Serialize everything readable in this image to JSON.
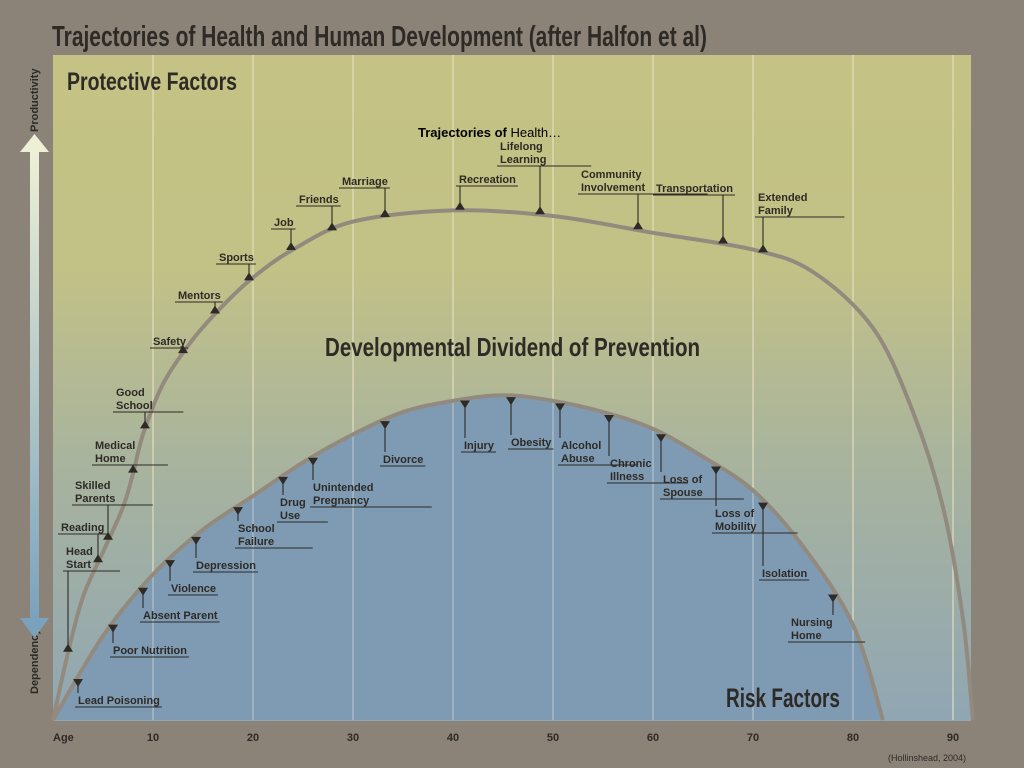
{
  "title": "Trajectories of Health and Human Development (after Halfon et al)",
  "slide_caption": {
    "bold": "Trajectories of",
    "normal": " Health…"
  },
  "labels": {
    "protective": "Protective Factors",
    "dividend": "Developmental Dividend of Prevention",
    "risk": "Risk Factors",
    "productivity": "Productivity",
    "dependency": "Dependency",
    "age": "Age",
    "citation": "(Hollinshead, 2004)"
  },
  "colors": {
    "background": "#8c8378",
    "panel_top": "#c4c284",
    "panel_bottom": "#94a7b0",
    "risk_area": "#7f9bb3",
    "curve": "#938a7e",
    "grid": "#e6e1c3",
    "text": "#2e2a26",
    "arrow_top": "#eef0d6",
    "arrow_bottom": "#7aa2bd"
  },
  "chart_data": {
    "type": "area",
    "x_axis": {
      "label": "Age",
      "ticks": [
        10,
        20,
        30,
        40,
        50,
        60,
        70,
        80,
        90
      ],
      "range": [
        0,
        92
      ]
    },
    "y_axis": {
      "top_label": "Productivity",
      "bottom_label": "Dependency"
    },
    "protective_curve": {
      "name": "Protective Factors",
      "points": [
        [
          0,
          0
        ],
        [
          1.5,
          12
        ],
        [
          3,
          22
        ],
        [
          5,
          30
        ],
        [
          7,
          38
        ],
        [
          8,
          44
        ],
        [
          9,
          51
        ],
        [
          11,
          60
        ],
        [
          14,
          68
        ],
        [
          17,
          74
        ],
        [
          20,
          79
        ],
        [
          24,
          84
        ],
        [
          30,
          89
        ],
        [
          40,
          91
        ],
        [
          50,
          90
        ],
        [
          60,
          87
        ],
        [
          70,
          84
        ],
        [
          76,
          80
        ],
        [
          82,
          70
        ],
        [
          86,
          55
        ],
        [
          89,
          38
        ],
        [
          91,
          18
        ],
        [
          92,
          0
        ]
      ]
    },
    "risk_curve": {
      "name": "Risk Factors",
      "points": [
        [
          0,
          0
        ],
        [
          5,
          15
        ],
        [
          10,
          26
        ],
        [
          15,
          34
        ],
        [
          20,
          40
        ],
        [
          25,
          46
        ],
        [
          30,
          51
        ],
        [
          35,
          55
        ],
        [
          40,
          57
        ],
        [
          45,
          58
        ],
        [
          50,
          57
        ],
        [
          55,
          55
        ],
        [
          60,
          52
        ],
        [
          65,
          47
        ],
        [
          70,
          41
        ],
        [
          75,
          31
        ],
        [
          80,
          17
        ],
        [
          83,
          0
        ]
      ]
    },
    "protective_factors": [
      {
        "label": [
          "Head",
          "Start"
        ],
        "x": 1.5
      },
      {
        "label": [
          "Reading"
        ],
        "x": 4.5
      },
      {
        "label": [
          "Skilled",
          "Parents"
        ],
        "x": 5.5
      },
      {
        "label": [
          "Medical",
          "Home"
        ],
        "x": 8
      },
      {
        "label": [
          "Good",
          "School"
        ],
        "x": 9.2
      },
      {
        "label": [
          "Safety"
        ],
        "x": 13
      },
      {
        "label": [
          "Mentors"
        ],
        "x": 16.2
      },
      {
        "label": [
          "Sports"
        ],
        "x": 19.6
      },
      {
        "label": [
          "Job"
        ],
        "x": 23.8
      },
      {
        "label": [
          "Friends"
        ],
        "x": 27.9
      },
      {
        "label": [
          "Marriage"
        ],
        "x": 33.2
      },
      {
        "label": [
          "Recreation"
        ],
        "x": 40.7
      },
      {
        "label": [
          "Lifelong",
          "Learning"
        ],
        "x": 48.7
      },
      {
        "label": [
          "Community",
          "Involvement"
        ],
        "x": 58.5
      },
      {
        "label": [
          "Transportation"
        ],
        "x": 67
      },
      {
        "label": [
          "Extended",
          "Family"
        ],
        "x": 71
      }
    ],
    "risk_factors": [
      {
        "label": [
          "Lead Poisoning"
        ],
        "x": 2.5
      },
      {
        "label": [
          "Poor Nutrition"
        ],
        "x": 6
      },
      {
        "label": [
          "Absent Parent"
        ],
        "x": 9
      },
      {
        "label": [
          "Violence"
        ],
        "x": 11.7
      },
      {
        "label": [
          "Depression"
        ],
        "x": 14.3
      },
      {
        "label": [
          "School",
          "Failure"
        ],
        "x": 18.5
      },
      {
        "label": [
          "Drug",
          "Use"
        ],
        "x": 23
      },
      {
        "label": [
          "Unintended",
          "Pregnancy"
        ],
        "x": 26
      },
      {
        "label": [
          "Divorce"
        ],
        "x": 33.2
      },
      {
        "label": [
          "Injury"
        ],
        "x": 41.2
      },
      {
        "label": [
          "Obesity"
        ],
        "x": 45.8
      },
      {
        "label": [
          "Alcohol",
          "Abuse"
        ],
        "x": 50.7
      },
      {
        "label": [
          "Chronic",
          "Illness"
        ],
        "x": 55.6
      },
      {
        "label": [
          "Loss of",
          "Spouse"
        ],
        "x": 60.8
      },
      {
        "label": [
          "Loss of",
          "Mobility"
        ],
        "x": 66.3
      },
      {
        "label": [
          "Isolation"
        ],
        "x": 71
      },
      {
        "label": [
          "Nursing",
          "Home"
        ],
        "x": 78
      }
    ]
  }
}
